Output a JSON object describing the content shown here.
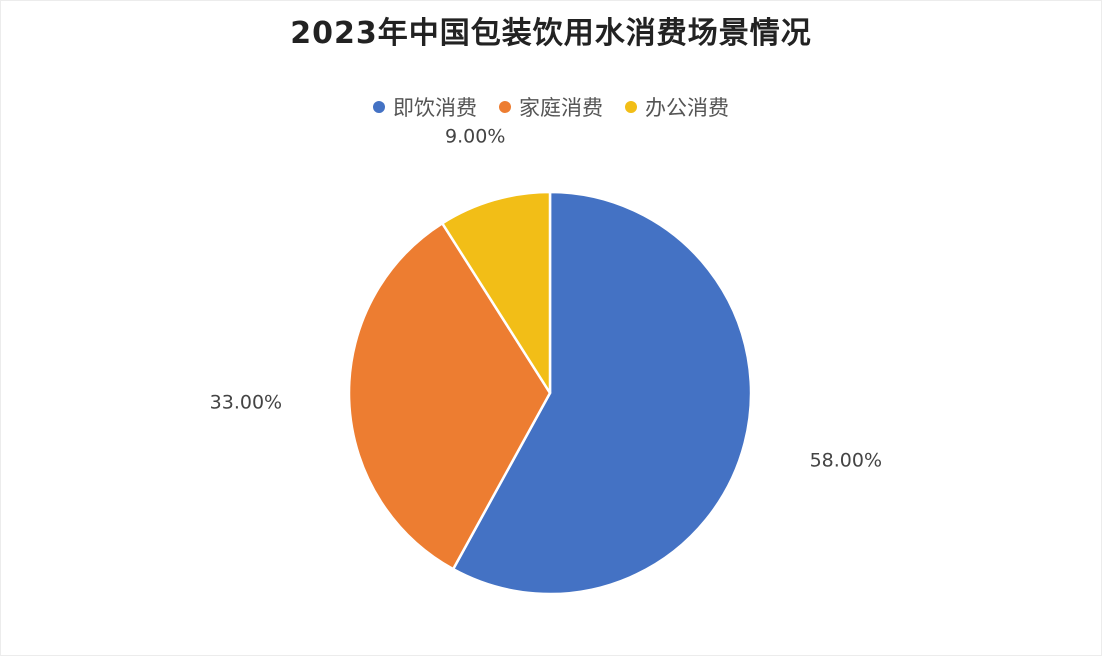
{
  "chart_data": {
    "type": "pie",
    "title": "2023年中国包装饮用水消费场景情况",
    "legend_position": "top",
    "slices": [
      {
        "name": "即饮消费",
        "value": 58.0,
        "label": "58.00%",
        "color": "#4472C4"
      },
      {
        "name": "家庭消费",
        "value": 33.0,
        "label": "33.00%",
        "color": "#ED7D31"
      },
      {
        "name": "办公消费",
        "value": 9.0,
        "label": "9.00%",
        "color": "#F2BE17"
      }
    ]
  }
}
